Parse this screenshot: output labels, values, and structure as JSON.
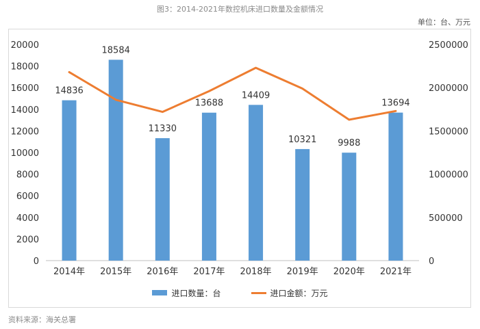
{
  "title": "图3：2014-2021年数控机床进口数量及金额情况",
  "unit_label": "单位：台、万元",
  "source": "资料来源：海关总署",
  "colors": {
    "bar": "#5b9bd5",
    "line": "#ed7d31"
  },
  "chart_data": {
    "type": "bar",
    "categories": [
      "2014年",
      "2015年",
      "2016年",
      "2017年",
      "2018年",
      "2019年",
      "2020年",
      "2021年"
    ],
    "series": [
      {
        "name": "进口数量：台",
        "type": "bar",
        "axis": "left",
        "values": [
          14836,
          18584,
          11330,
          13688,
          14409,
          10321,
          9988,
          13694
        ],
        "data_labels": [
          "14836",
          "18584",
          "11330",
          "13688",
          "14409",
          "10321",
          "9988",
          "13694"
        ]
      },
      {
        "name": "进口金额：万元",
        "type": "line",
        "axis": "right",
        "values": [
          2180000,
          1860000,
          1720000,
          1960000,
          2230000,
          1990000,
          1630000,
          1730000
        ]
      }
    ],
    "y_left": {
      "lim": [
        0,
        20000
      ],
      "ticks": [
        "0",
        "2000",
        "4000",
        "6000",
        "8000",
        "10000",
        "12000",
        "14000",
        "16000",
        "18000",
        "20000"
      ]
    },
    "y_right": {
      "lim": [
        0,
        2500000
      ],
      "ticks": [
        "0",
        "500000",
        "1000000",
        "1500000",
        "2000000",
        "2500000"
      ]
    },
    "grid": false,
    "legend": "bottom"
  }
}
